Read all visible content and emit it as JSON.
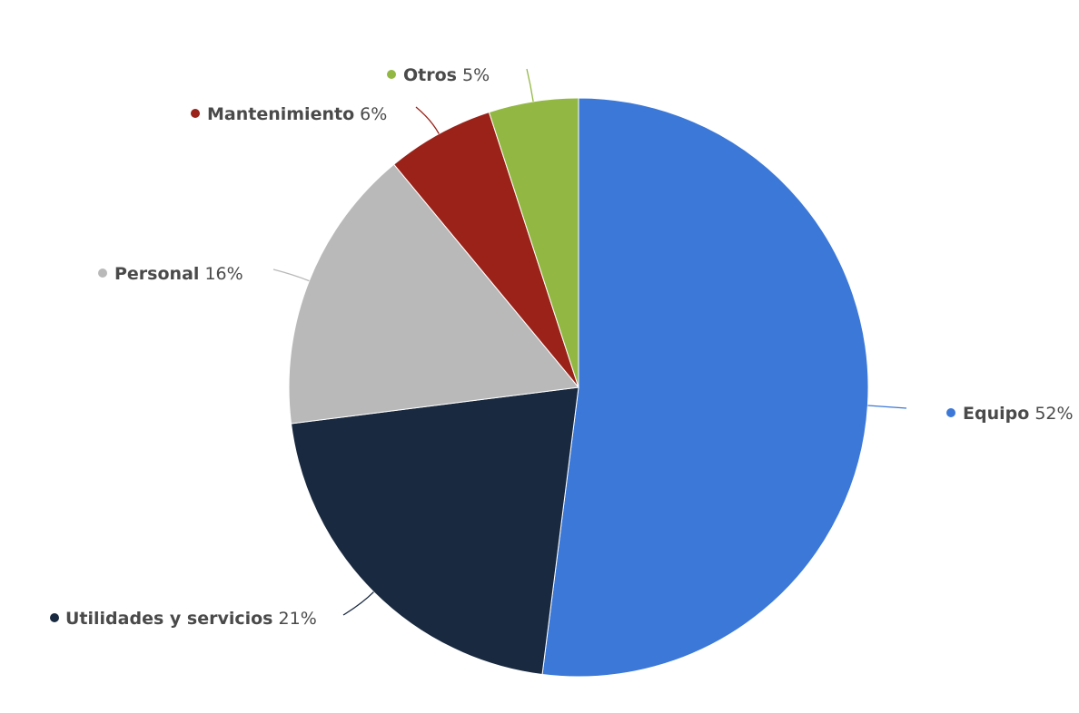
{
  "chart_data": {
    "type": "pie",
    "unit": "%",
    "slices": [
      {
        "label": "Equipo",
        "value": 52,
        "color": "#3b78d8"
      },
      {
        "label": "Utilidades y servicios",
        "value": 21,
        "color": "#19293f"
      },
      {
        "label": "Personal",
        "value": 16,
        "color": "#b9b9b9"
      },
      {
        "label": "Mantenimiento",
        "value": 6,
        "color": "#9a2219"
      },
      {
        "label": "Otros",
        "value": 5,
        "color": "#92b843"
      }
    ]
  }
}
